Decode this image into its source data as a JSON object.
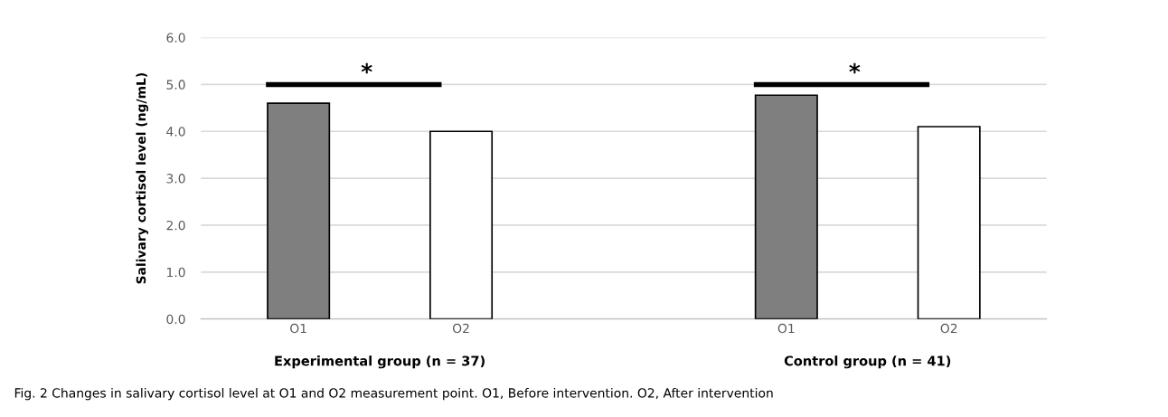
{
  "chart_data": {
    "type": "bar",
    "ylabel": "Salivary cortisol level (ng/mL)",
    "categories": [
      "O1",
      "O2",
      null,
      "O1",
      "O2"
    ],
    "values": [
      4.6,
      4.0,
      null,
      4.77,
      4.1
    ],
    "colors": [
      "#7f7f7f",
      "#ffffff",
      null,
      "#7f7f7f",
      "#ffffff"
    ],
    "ylim": [
      0,
      6
    ],
    "yticks": [
      {
        "value": 0,
        "label": "0.0"
      },
      {
        "value": 1,
        "label": "1.0"
      },
      {
        "value": 2,
        "label": "2.0"
      },
      {
        "value": 3,
        "label": "3.0"
      },
      {
        "value": 4,
        "label": "4.0"
      },
      {
        "value": 5,
        "label": "5.0"
      },
      {
        "value": 6,
        "label": "6.0"
      }
    ],
    "grid": "y",
    "legend": false,
    "annotations": [
      "Experimental group (n = 37)",
      "Control group (n = 41)",
      "*",
      "*",
      "Fig. 2 Changes in salivary cortisol level at O1 and O2 measurement point. O1, Before intervention. O2, After intervention"
    ]
  }
}
